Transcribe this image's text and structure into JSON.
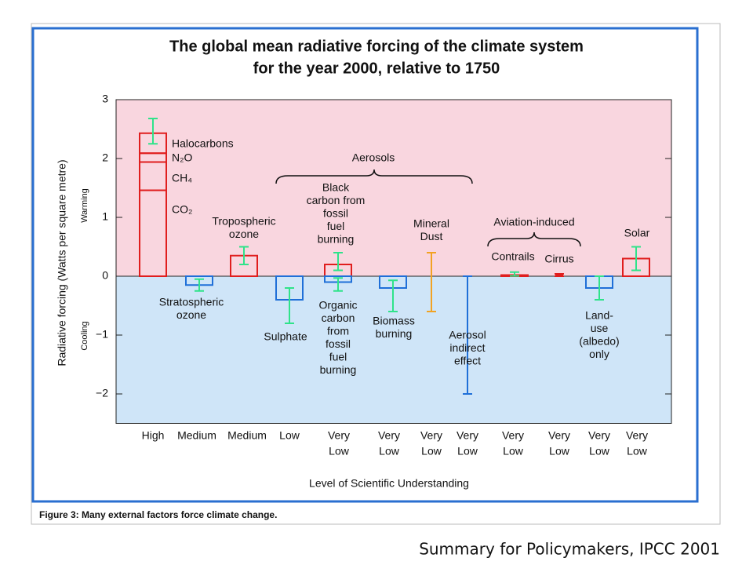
{
  "chart_data": {
    "type": "forcing",
    "title": [
      "The global mean radiative forcing of the climate system",
      "for the year 2000, relative to 1750"
    ],
    "y_label": "Radiative forcing  (Watts per square metre)",
    "warming_label": "Warming",
    "cooling_label": "Cooling",
    "x_label": "Level  of Scientific Understanding",
    "caption": "Figure 3: Many external factors force climate change.",
    "source": "Summary for Policymakers, IPCC 2001",
    "ylim": [
      -2.5,
      3
    ],
    "yticks": [
      {
        "value": -2,
        "label": "−2"
      },
      {
        "value": -1,
        "label": "−1"
      },
      0,
      1,
      2,
      3
    ],
    "warm_color": "#f9d6df",
    "cool_color": "#cfe5f8",
    "pos_color": "#e01e1e",
    "neg_color": "#1f6fd8",
    "err_color": "#2fe38a",
    "groups": [
      {
        "label": "Aerosols"
      },
      {
        "label": "Aviation-induced"
      }
    ],
    "items": [
      {
        "segments": [
          {
            "label": "CO₂",
            "value": 1.46
          },
          {
            "label": "CH₄",
            "value": 0.48
          },
          {
            "label": "N₂O",
            "value": 0.15
          },
          {
            "label": "Halocarbons",
            "value": 0.34
          }
        ],
        "range": [
          2.25,
          2.68
        ]
      },
      {
        "label": [
          "Stratospheric",
          "ozone"
        ],
        "value": -0.15,
        "range": [
          -0.25,
          -0.05
        ]
      },
      {
        "label": [
          "Tropospheric",
          "ozone"
        ],
        "value": 0.35,
        "range": [
          0.2,
          0.5
        ]
      },
      {
        "label": [
          "Sulphate"
        ],
        "value": -0.4,
        "range": [
          -0.8,
          -0.2
        ]
      },
      {
        "label": [
          "Black",
          "carbon from",
          "fossil",
          "fuel",
          "burning"
        ],
        "value": 0.2,
        "range": [
          0.1,
          0.4
        ]
      },
      {
        "label": [
          "Organic",
          "carbon",
          "from",
          "fossil",
          "fuel",
          "burning"
        ],
        "value": -0.1,
        "range": [
          -0.25,
          -0.03
        ]
      },
      {
        "label": [
          "Biomass",
          "burning"
        ],
        "value": -0.2,
        "range": [
          -0.6,
          -0.07
        ]
      },
      {
        "label": [
          "Mineral",
          "Dust"
        ],
        "range": [
          -0.6,
          0.4
        ],
        "color": "#f2a222"
      },
      {
        "label": [
          "Aerosol",
          "indirect",
          "effect"
        ],
        "range": [
          -2,
          0
        ],
        "color": "#1f6fd8"
      },
      {
        "label": [
          "Contrails"
        ],
        "value": 0.02,
        "range": [
          0.005,
          0.07
        ]
      },
      {
        "label": [
          "Cirrus"
        ],
        "value": 0.03,
        "range": [
          0,
          0.04
        ],
        "color": "#e01e1e"
      },
      {
        "label": [
          "Land-",
          "use",
          "(albedo)",
          "only"
        ],
        "value": -0.2,
        "range": [
          -0.4,
          0
        ]
      },
      {
        "label": [
          "Solar"
        ],
        "value": 0.3,
        "range": [
          0.1,
          0.5
        ]
      }
    ],
    "levels": [
      [
        "High"
      ],
      [
        "Medium"
      ],
      [
        "Medium"
      ],
      [
        "Low"
      ],
      [
        "Very",
        "Low"
      ],
      [
        "Very",
        "Low"
      ],
      [
        "Very",
        "Low"
      ],
      [
        "Very",
        "Low"
      ],
      [
        "Very",
        "Low"
      ],
      [
        "Very",
        "Low"
      ],
      [
        "Very",
        "Low"
      ],
      [
        "Very",
        "Low"
      ]
    ]
  }
}
